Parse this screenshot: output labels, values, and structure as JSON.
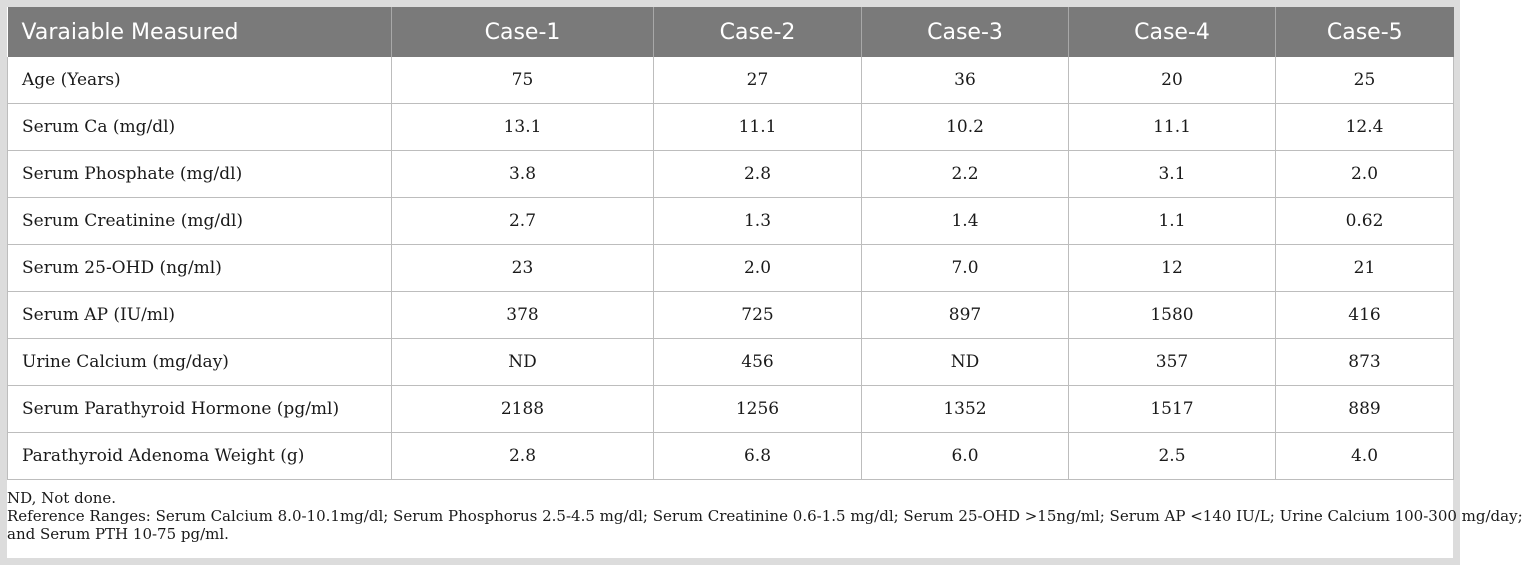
{
  "table": {
    "headers": [
      "Varaiable Measured",
      "Case-1",
      "Case-2",
      "Case-3",
      "Case-4",
      "Case-5"
    ],
    "rows": [
      {
        "label": "Age (Years)",
        "values": [
          "75",
          "27",
          "36",
          "20",
          "25"
        ]
      },
      {
        "label": "Serum Ca (mg/dl)",
        "values": [
          "13.1",
          "11.1",
          "10.2",
          "11.1",
          "12.4"
        ]
      },
      {
        "label": "Serum Phosphate (mg/dl)",
        "values": [
          "3.8",
          "2.8",
          "2.2",
          "3.1",
          "2.0"
        ]
      },
      {
        "label": "Serum Creatinine (mg/dl)",
        "values": [
          "2.7",
          "1.3",
          "1.4",
          "1.1",
          "0.62"
        ]
      },
      {
        "label": "Serum 25-OHD (ng/ml)",
        "values": [
          "23",
          "2.0",
          "7.0",
          "12",
          "21"
        ]
      },
      {
        "label": "Serum AP (IU/ml)",
        "values": [
          "378",
          "725",
          "897",
          "1580",
          "416"
        ]
      },
      {
        "label": "Urine Calcium (mg/day)",
        "values": [
          "ND",
          "456",
          "ND",
          "357",
          "873"
        ]
      },
      {
        "label": "Serum Parathyroid Hormone (pg/ml)",
        "values": [
          "2188",
          "1256",
          "1352",
          "1517",
          "889"
        ]
      },
      {
        "label": "Parathyroid Adenoma Weight (g)",
        "values": [
          "2.8",
          "6.8",
          "6.0",
          "2.5",
          "4.0"
        ]
      }
    ]
  },
  "footnotes": {
    "abbreviation": "ND, Not done.",
    "reference_line1": "Reference Ranges: Serum Calcium 8.0-10.1mg/dl; Serum Phosphorus 2.5-4.5 mg/dl; Serum Creatinine 0.6-1.5 mg/dl; Serum 25-OHD >15ng/ml; Serum AP <140 IU/L; Urine Calcium 100-300 mg/day;",
    "reference_line2": "and Serum PTH 10-75 pg/ml."
  },
  "colors": {
    "header_bg": "#7a7a7a",
    "header_text": "#ffffff",
    "frame": "#dcdcdc"
  }
}
